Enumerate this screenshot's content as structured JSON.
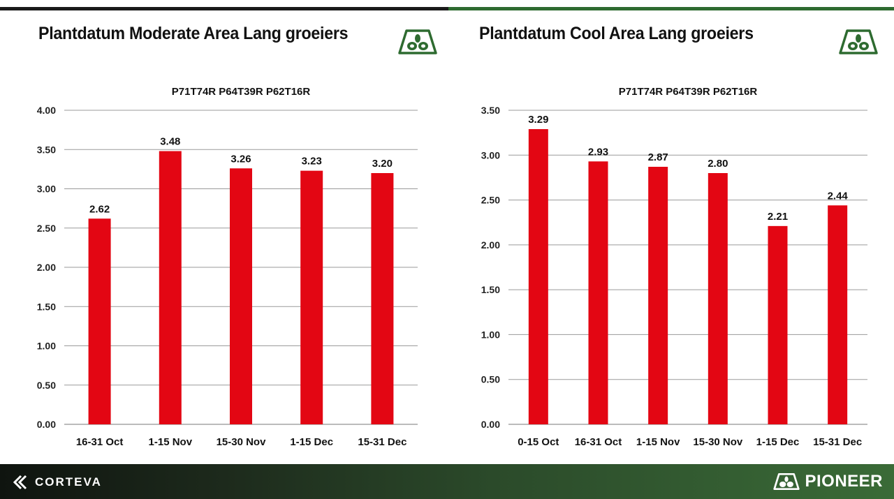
{
  "colors": {
    "bar": "#e30613",
    "grid": "#9a9a9a",
    "brand_green": "#2e6b30"
  },
  "footer": {
    "left_brand": "CORTEVA",
    "right_brand": "PIONEER"
  },
  "chart_data": [
    {
      "type": "bar",
      "panel_title": "Plantdatum Moderate Area Lang groeiers",
      "title": "P71T74R P64T39R P62T16R",
      "categories": [
        "16-31 Oct",
        "1-15 Nov",
        "15-30 Nov",
        "1-15 Dec",
        "15-31 Dec"
      ],
      "values": [
        2.62,
        3.48,
        3.26,
        3.23,
        3.2
      ],
      "value_labels": [
        "2.62",
        "3.48",
        "3.26",
        "3.23",
        "3.20"
      ],
      "ylim": [
        0,
        4
      ],
      "yticks": [
        "0.00",
        "0.50",
        "1.00",
        "1.50",
        "2.00",
        "2.50",
        "3.00",
        "3.50",
        "4.00"
      ],
      "grid": true,
      "legend": "none"
    },
    {
      "type": "bar",
      "panel_title": "Plantdatum Cool Area Lang groeiers",
      "title": "P71T74R P64T39R P62T16R",
      "categories": [
        "0-15 Oct",
        "16-31 Oct",
        "1-15 Nov",
        "15-30 Nov",
        "1-15 Dec",
        "15-31 Dec"
      ],
      "values": [
        3.29,
        2.93,
        2.87,
        2.8,
        2.21,
        2.44
      ],
      "value_labels": [
        "3.29",
        "2.93",
        "2.87",
        "2.80",
        "2.21",
        "2.44"
      ],
      "ylim": [
        0,
        3.5
      ],
      "yticks": [
        "0.00",
        "0.50",
        "1.00",
        "1.50",
        "2.00",
        "2.50",
        "3.00",
        "3.50"
      ],
      "grid": true,
      "legend": "none"
    }
  ]
}
